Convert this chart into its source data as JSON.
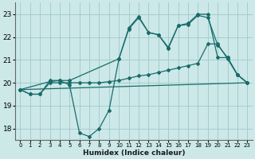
{
  "xlabel": "Humidex (Indice chaleur)",
  "xlim": [
    -0.5,
    23.5
  ],
  "ylim": [
    17.5,
    23.5
  ],
  "yticks": [
    18,
    19,
    20,
    21,
    22,
    23
  ],
  "xticks": [
    0,
    1,
    2,
    3,
    4,
    5,
    6,
    7,
    8,
    9,
    10,
    11,
    12,
    13,
    14,
    15,
    16,
    17,
    18,
    19,
    20,
    21,
    22,
    23
  ],
  "background_color": "#cce8e8",
  "grid_color": "#a0c8c8",
  "line_color": "#1a6b6b",
  "series": [
    {
      "x": [
        0,
        1,
        2,
        3,
        4,
        5,
        6,
        7,
        8,
        9,
        10,
        11,
        12,
        13,
        14,
        15,
        16,
        17,
        18,
        19,
        20,
        21,
        22,
        23
      ],
      "y": [
        19.7,
        19.5,
        19.5,
        20.1,
        20.1,
        19.9,
        17.8,
        17.65,
        18.0,
        18.8,
        21.05,
        22.4,
        22.9,
        22.2,
        22.1,
        21.5,
        22.5,
        22.6,
        23.0,
        23.0,
        21.1,
        21.1,
        20.35,
        20.0
      ]
    },
    {
      "x": [
        0,
        1,
        2,
        3,
        4,
        5,
        6,
        7,
        8,
        9,
        10,
        11,
        12,
        13,
        14,
        15,
        16,
        17,
        18,
        19,
        20,
        21,
        22,
        23
      ],
      "y": [
        19.7,
        19.5,
        19.5,
        20.0,
        20.0,
        20.0,
        20.0,
        20.0,
        20.0,
        20.05,
        20.1,
        20.2,
        20.3,
        20.35,
        20.45,
        20.55,
        20.65,
        20.75,
        20.85,
        21.7,
        21.7,
        21.05,
        20.35,
        20.0
      ]
    },
    {
      "x": [
        0,
        3,
        4,
        5,
        10,
        11,
        12,
        13,
        14,
        15,
        16,
        17,
        18,
        19,
        20,
        21,
        22,
        23
      ],
      "y": [
        19.7,
        20.05,
        20.1,
        20.1,
        21.05,
        22.35,
        22.85,
        22.2,
        22.1,
        21.55,
        22.5,
        22.55,
        22.95,
        22.85,
        21.65,
        21.1,
        20.35,
        20.0
      ]
    },
    {
      "x": [
        0,
        23
      ],
      "y": [
        19.7,
        20.0
      ]
    }
  ]
}
